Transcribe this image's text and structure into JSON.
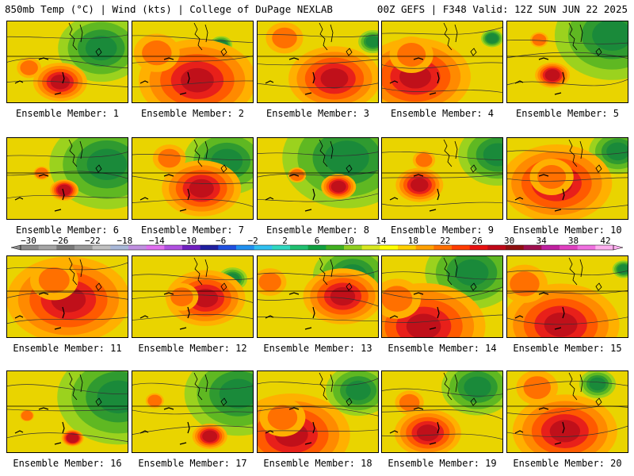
{
  "header": {
    "left": "850mb Temp (°C) | Wind (kts) | College of DuPage NEXLAB",
    "right": "00Z GEFS | F348 Valid: 12Z SUN JUN 22 2025"
  },
  "colorbar": {
    "labels": [
      "−30",
      "−26",
      "−22",
      "−18",
      "−14",
      "−10",
      "−6",
      "−2",
      "2",
      "6",
      "10",
      "14",
      "18",
      "22",
      "26",
      "30",
      "34",
      "38",
      "42"
    ],
    "colors": [
      "#8c8c8c",
      "#a5a5a5",
      "#7a7a7a",
      "#9a9a9a",
      "#c0c0c0",
      "#a9b8d8",
      "#c090e0",
      "#e070f0",
      "#b050e0",
      "#7020c0",
      "#2020a0",
      "#2050e0",
      "#2090f0",
      "#30c0f0",
      "#30d8c0",
      "#20c070",
      "#10a040",
      "#40b020",
      "#90d020",
      "#d8e820",
      "#ffff00",
      "#ffd000",
      "#ffa000",
      "#ff7000",
      "#ff3c00",
      "#e81010",
      "#c00818",
      "#901010",
      "#a01050",
      "#c020a0",
      "#e040c0",
      "#f070e0",
      "#ffb0f0"
    ]
  },
  "panel_caption_prefix": "Ensemble Member: ",
  "members": [
    {
      "id": "1",
      "hot": 0.35,
      "cool": 0.55
    },
    {
      "id": "2",
      "hot": 0.85,
      "cool": 0.1
    },
    {
      "id": "3",
      "hot": 0.65,
      "cool": 0.15
    },
    {
      "id": "4",
      "hot": 0.8,
      "cool": 0.1
    },
    {
      "id": "5",
      "hot": 0.2,
      "cool": 0.75
    },
    {
      "id": "6",
      "hot": 0.15,
      "cool": 0.75
    },
    {
      "id": "7",
      "hot": 0.55,
      "cool": 0.55
    },
    {
      "id": "8",
      "hot": 0.2,
      "cool": 0.85
    },
    {
      "id": "9",
      "hot": 0.3,
      "cool": 0.5
    },
    {
      "id": "10",
      "hot": 0.8,
      "cool": 0.35
    },
    {
      "id": "11",
      "hot": 0.9,
      "cool": 0.1
    },
    {
      "id": "12",
      "hot": 0.55,
      "cool": 0.15
    },
    {
      "id": "13",
      "hot": 0.55,
      "cool": 0.5
    },
    {
      "id": "14",
      "hot": 0.9,
      "cool": 0.6
    },
    {
      "id": "15",
      "hot": 0.85,
      "cool": 0.1
    },
    {
      "id": "16",
      "hot": 0.1,
      "cool": 0.8
    },
    {
      "id": "17",
      "hot": 0.2,
      "cool": 0.7
    },
    {
      "id": "18",
      "hot": 0.85,
      "cool": 0.4
    },
    {
      "id": "19",
      "hot": 0.45,
      "cool": 0.45
    },
    {
      "id": "20",
      "hot": 0.75,
      "cool": 0.2
    }
  ]
}
